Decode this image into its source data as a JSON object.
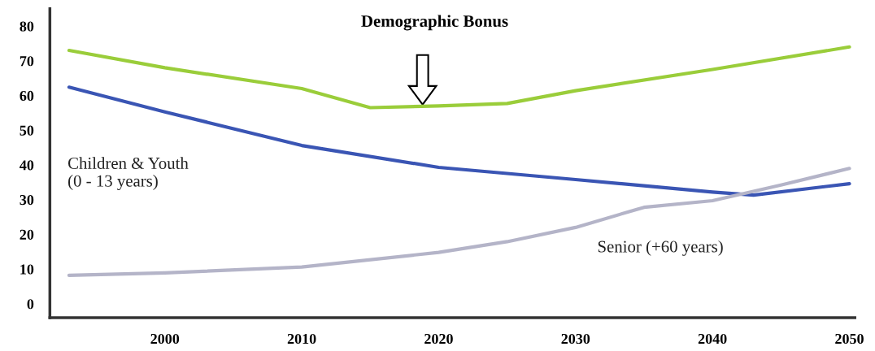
{
  "chart_data": {
    "type": "line",
    "xlim": [
      1991.6,
      2050.4
    ],
    "xticks": [
      2000,
      2010,
      2020,
      2030,
      2040,
      2050
    ],
    "ylim": [
      -4,
      85
    ],
    "yticks": [
      0,
      10,
      20,
      30,
      40,
      50,
      60,
      70,
      80
    ],
    "grid": false,
    "legend": false,
    "annotations": [
      "Demographic Bonus"
    ],
    "series": [
      {
        "color": "#9acd3a",
        "x": [
          1993,
          2000,
          2010,
          2015,
          2020,
          2025,
          2030,
          2040,
          2050
        ],
        "values": [
          73,
          68,
          62,
          56.5,
          57,
          57.7,
          61.4,
          67.5,
          74
        ]
      },
      {
        "name": "Children & Youth\n(0 - 13 years)",
        "color": "#3a55b4",
        "x": [
          1993,
          2000,
          2010,
          2020,
          2030,
          2040,
          2043,
          2050
        ],
        "values": [
          62.4,
          55.3,
          45.6,
          39.3,
          35.8,
          32.2,
          31.3,
          34.6
        ]
      },
      {
        "name": "Senior (+60 years)",
        "color": "#b4b4c8",
        "x": [
          1993,
          2000,
          2010,
          2020,
          2025,
          2030,
          2035,
          2040,
          2045,
          2050
        ],
        "values": [
          8.2,
          8.9,
          10.6,
          14.8,
          17.9,
          22,
          27.8,
          29.7,
          34.2,
          39
        ]
      }
    ]
  }
}
